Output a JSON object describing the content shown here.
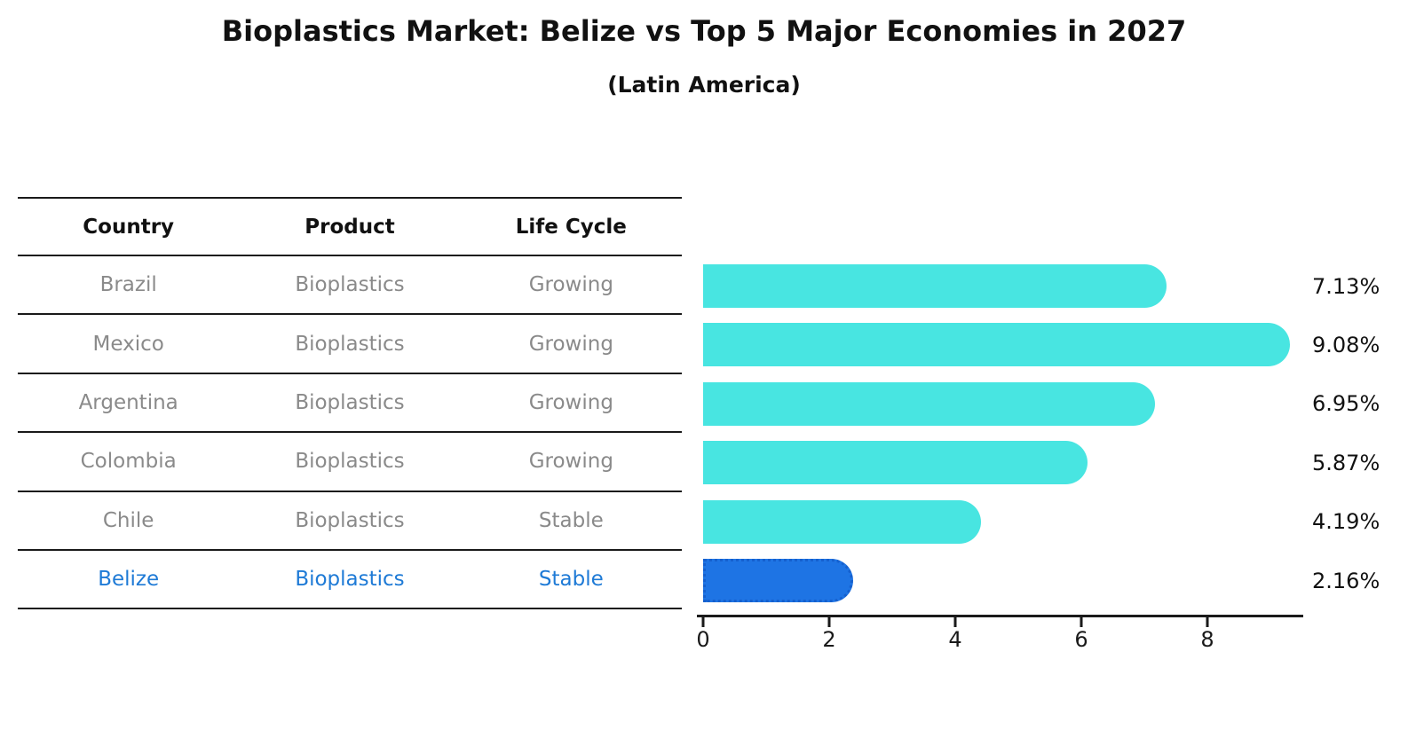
{
  "title": "Bioplastics Market: Belize vs Top 5 Major Economies in 2027",
  "subtitle": "(Latin America)",
  "table": {
    "headers": [
      "Country",
      "Product",
      "Life Cycle"
    ],
    "rows": [
      {
        "country": "Brazil",
        "product": "Bioplastics",
        "life_cycle": "Growing",
        "highlight": false
      },
      {
        "country": "Mexico",
        "product": "Bioplastics",
        "life_cycle": "Growing",
        "highlight": false
      },
      {
        "country": "Argentina",
        "product": "Bioplastics",
        "life_cycle": "Growing",
        "highlight": false
      },
      {
        "country": "Colombia",
        "product": "Bioplastics",
        "life_cycle": "Growing",
        "highlight": false
      },
      {
        "country": "Chile",
        "product": "Bioplastics",
        "life_cycle": "Stable",
        "highlight": false
      },
      {
        "country": "Belize",
        "product": "Bioplastics",
        "life_cycle": "Stable",
        "highlight": true
      }
    ]
  },
  "chart_data": {
    "type": "bar",
    "orientation": "horizontal",
    "title": "Bioplastics Market: Belize vs Top 5 Major Economies in 2027",
    "subtitle": "(Latin America)",
    "categories": [
      "Brazil",
      "Mexico",
      "Argentina",
      "Colombia",
      "Chile",
      "Belize"
    ],
    "values": [
      7.13,
      9.08,
      6.95,
      5.87,
      4.19,
      2.16
    ],
    "value_labels": [
      "7.13%",
      "9.08%",
      "6.95%",
      "5.87%",
      "4.19%",
      "2.16%"
    ],
    "xticks": [
      0,
      2,
      4,
      6,
      8
    ],
    "xlim": [
      0,
      9.5
    ],
    "grid": false,
    "legend": false,
    "bar_color": "#48e5e1",
    "highlight_bar_color": "#1e74e4",
    "highlight_border_color": "#1560ce",
    "highlight_index": 5,
    "highlight_text_color": "#1e7ad6",
    "row_text_color": "#8a8a8a"
  }
}
